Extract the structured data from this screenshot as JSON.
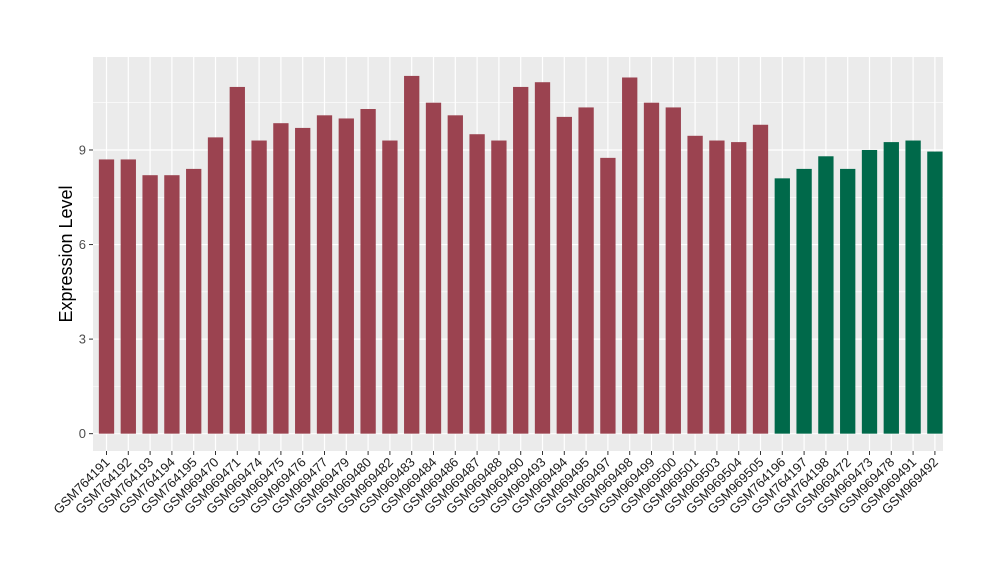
{
  "chart_data": {
    "type": "bar",
    "title": "",
    "xlabel": "",
    "ylabel": "Expression Level",
    "ylim": [
      -0.55,
      11.95
    ],
    "yticks": [
      0,
      3,
      6,
      9
    ],
    "grid": true,
    "legend": "none",
    "colors": {
      "group1": "#9b4350",
      "group2": "#00694a",
      "panel": "#ebebeb",
      "grid": "#ffffff",
      "tick": "#333333"
    },
    "categories": [
      "GSM764191",
      "GSM764192",
      "GSM764193",
      "GSM764194",
      "GSM764195",
      "GSM969470",
      "GSM969471",
      "GSM969474",
      "GSM969475",
      "GSM969476",
      "GSM969477",
      "GSM969479",
      "GSM969480",
      "GSM969482",
      "GSM969483",
      "GSM969484",
      "GSM969486",
      "GSM969487",
      "GSM969488",
      "GSM969490",
      "GSM969493",
      "GSM969494",
      "GSM969495",
      "GSM969497",
      "GSM969498",
      "GSM969499",
      "GSM969500",
      "GSM969501",
      "GSM969503",
      "GSM969504",
      "GSM969505",
      "GSM764196",
      "GSM764197",
      "GSM764198",
      "GSM969472",
      "GSM969473",
      "GSM969478",
      "GSM969491",
      "GSM969492"
    ],
    "values": [
      8.7,
      8.7,
      8.2,
      8.2,
      8.4,
      9.4,
      11.0,
      9.3,
      9.85,
      9.7,
      10.1,
      10.0,
      10.3,
      9.3,
      11.35,
      10.5,
      10.1,
      9.5,
      9.3,
      11.0,
      11.15,
      10.05,
      10.35,
      8.75,
      11.3,
      10.5,
      10.35,
      9.45,
      9.3,
      9.25,
      9.8,
      8.1,
      8.4,
      8.8,
      8.4,
      9.0,
      9.25,
      9.3,
      8.95
    ],
    "groups": [
      1,
      1,
      1,
      1,
      1,
      1,
      1,
      1,
      1,
      1,
      1,
      1,
      1,
      1,
      1,
      1,
      1,
      1,
      1,
      1,
      1,
      1,
      1,
      1,
      1,
      1,
      1,
      1,
      1,
      1,
      1,
      2,
      2,
      2,
      2,
      2,
      2,
      2,
      2
    ]
  }
}
